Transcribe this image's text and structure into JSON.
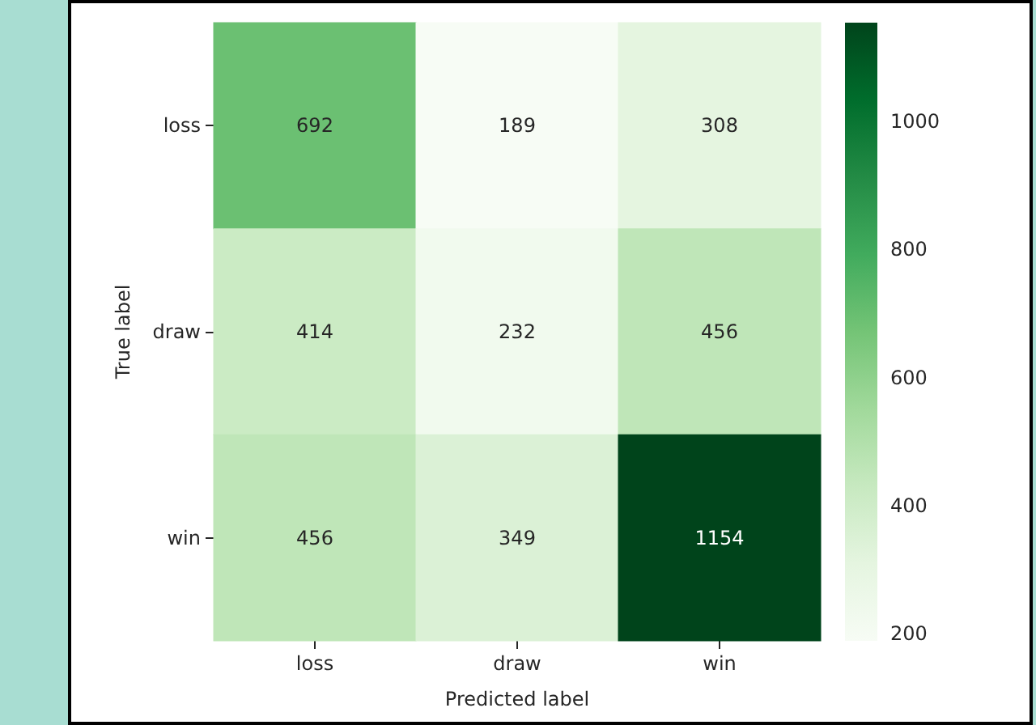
{
  "chart_data": {
    "type": "heatmap",
    "xlabel": "Predicted label",
    "ylabel": "True label",
    "categories": [
      "loss",
      "draw",
      "win"
    ],
    "y_categories": [
      "loss",
      "draw",
      "win"
    ],
    "cells": [
      [
        692,
        189,
        308
      ],
      [
        414,
        232,
        456
      ],
      [
        456,
        349,
        1154
      ]
    ],
    "clim": [
      189,
      1154
    ],
    "cticks": [
      200,
      400,
      600,
      800,
      1000
    ],
    "data_labels": true
  }
}
